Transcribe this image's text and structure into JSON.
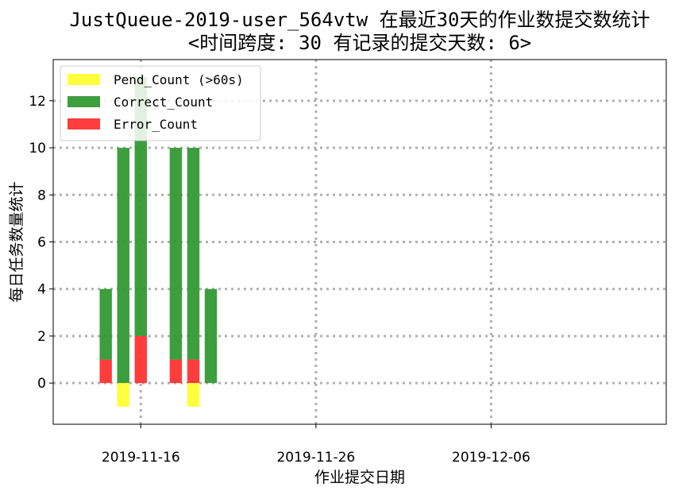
{
  "chart_data": {
    "type": "bar",
    "stacked": true,
    "title_line1": "JustQueue-2019-user_564vtw 在最近30天的作业数提交数统计",
    "title_line2": "<时间跨度: 30  有记录的提交天数: 6>",
    "xlabel": "作业提交日期",
    "ylabel": "每日任务数量统计",
    "x_ticks": [
      "2019-11-16",
      "2019-11-26",
      "2019-12-06"
    ],
    "y_ticks": [
      0,
      2,
      4,
      6,
      8,
      10,
      12
    ],
    "ylim": [
      -1.75,
      13.75
    ],
    "xlim": [
      "2019-11-11",
      "2019-12-16"
    ],
    "grid": true,
    "legend_position": "upper-left",
    "x": [
      "2019-11-14",
      "2019-11-15",
      "2019-11-16",
      "2019-11-18",
      "2019-11-19",
      "2019-11-20"
    ],
    "series": [
      {
        "name": "Pend_Count (>60s)",
        "color": "#ffff33",
        "values": [
          0,
          -1,
          0,
          0,
          -1,
          0
        ]
      },
      {
        "name": "Correct_Count",
        "color": "#339933",
        "values": [
          3,
          10,
          11,
          9,
          9,
          4
        ]
      },
      {
        "name": "Error_Count",
        "color": "#ff3333",
        "values": [
          1,
          0,
          2,
          1,
          1,
          0
        ]
      }
    ]
  }
}
